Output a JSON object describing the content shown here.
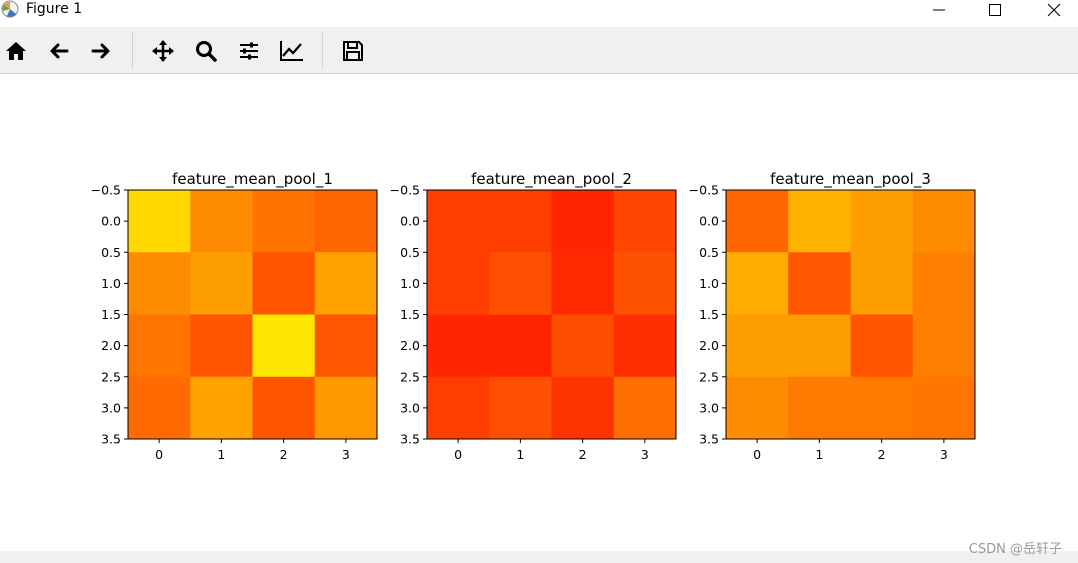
{
  "window": {
    "title": "Figure 1",
    "icons": [
      "app-icon",
      "minimize-icon",
      "maximize-icon",
      "close-icon"
    ]
  },
  "toolbar": {
    "buttons": [
      {
        "name": "home-icon",
        "tooltip": "Home"
      },
      {
        "name": "back-icon",
        "tooltip": "Back"
      },
      {
        "name": "forward-icon",
        "tooltip": "Forward"
      },
      {
        "name": "pan-icon",
        "tooltip": "Pan"
      },
      {
        "name": "zoom-icon",
        "tooltip": "Zoom"
      },
      {
        "name": "subplots-icon",
        "tooltip": "Subplots"
      },
      {
        "name": "edit-axis-icon",
        "tooltip": "Customize"
      },
      {
        "name": "save-icon",
        "tooltip": "Save"
      }
    ]
  },
  "watermark": "CSDN @岳轩子",
  "colors": {
    "toolbar_bg": "#f0f0f0",
    "colormap": "autumn"
  },
  "chart_data": [
    {
      "type": "heatmap",
      "title": "feature_mean_pool_1",
      "x_ticks": [
        "0",
        "1",
        "2",
        "3"
      ],
      "y_ticks": [
        "−0.5",
        "0.0",
        "0.5",
        "1.0",
        "1.5",
        "2.0",
        "2.5",
        "3.0",
        "3.5"
      ],
      "xlim": [
        -0.5,
        3.5
      ],
      "ylim": [
        3.5,
        -0.5
      ],
      "colormap": "autumn",
      "values": [
        [
          0.85,
          0.55,
          0.45,
          0.4
        ],
        [
          0.55,
          0.62,
          0.33,
          0.63
        ],
        [
          0.46,
          0.33,
          0.9,
          0.34
        ],
        [
          0.42,
          0.63,
          0.33,
          0.6
        ]
      ]
    },
    {
      "type": "heatmap",
      "title": "feature_mean_pool_2",
      "x_ticks": [
        "0",
        "1",
        "2",
        "3"
      ],
      "y_ticks": [
        "−0.5",
        "0.0",
        "0.5",
        "1.0",
        "1.5",
        "2.0",
        "2.5",
        "3.0",
        "3.5"
      ],
      "xlim": [
        -0.5,
        3.5
      ],
      "ylim": [
        3.5,
        -0.5
      ],
      "colormap": "autumn",
      "values": [
        [
          0.24,
          0.24,
          0.15,
          0.27
        ],
        [
          0.24,
          0.31,
          0.16,
          0.32
        ],
        [
          0.15,
          0.14,
          0.3,
          0.18
        ],
        [
          0.24,
          0.31,
          0.2,
          0.43
        ]
      ]
    },
    {
      "type": "heatmap",
      "title": "feature_mean_pool_3",
      "x_ticks": [
        "0",
        "1",
        "2",
        "3"
      ],
      "y_ticks": [
        "−0.5",
        "0.0",
        "0.5",
        "1.0",
        "1.5",
        "2.0",
        "2.5",
        "3.0",
        "3.5"
      ],
      "xlim": [
        -0.5,
        3.5
      ],
      "ylim": [
        3.5,
        -0.5
      ],
      "colormap": "autumn",
      "values": [
        [
          0.4,
          0.7,
          0.62,
          0.55
        ],
        [
          0.67,
          0.34,
          0.62,
          0.5
        ],
        [
          0.62,
          0.62,
          0.33,
          0.5
        ],
        [
          0.55,
          0.48,
          0.48,
          0.46
        ]
      ]
    }
  ]
}
